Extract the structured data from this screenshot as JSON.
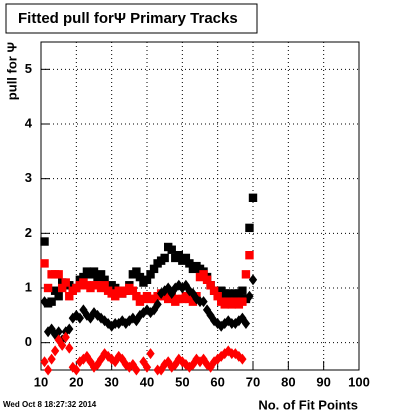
{
  "chart_data": {
    "type": "scatter",
    "title": "Fitted pull forΨ  Primary Tracks",
    "y_label": "pull for Ψ",
    "x_label": "No. of Fit Points",
    "timestamp": "Wed Oct  8 18:27:32 2014",
    "xlim": [
      10,
      100
    ],
    "ylim": [
      -0.5,
      5.5
    ],
    "xticks": [
      10,
      20,
      30,
      40,
      50,
      60,
      70,
      80,
      90,
      100
    ],
    "yticks": [
      0,
      1,
      2,
      3,
      4,
      5
    ],
    "grid": true,
    "x": [
      11,
      12,
      13,
      14,
      15,
      16,
      17,
      18,
      19,
      20,
      21,
      22,
      23,
      24,
      25,
      26,
      27,
      28,
      29,
      30,
      31,
      32,
      33,
      34,
      35,
      36,
      37,
      38,
      39,
      40,
      41,
      42,
      43,
      44,
      45,
      46,
      47,
      48,
      49,
      50,
      51,
      52,
      53,
      54,
      55,
      56,
      57,
      58,
      59,
      60,
      61,
      62,
      63,
      64,
      65,
      66,
      67,
      68,
      69,
      70
    ],
    "series": [
      {
        "color": "#000000",
        "marker": "square",
        "values": [
          1.85,
          0.72,
          0.75,
          0.95,
          0.85,
          1.1,
          1.05,
          1.05,
          0.95,
          1.0,
          1.15,
          1.2,
          1.3,
          1.25,
          1.3,
          1.2,
          1.25,
          1.15,
          1.0,
          1.05,
          1.0,
          0.95,
          0.9,
          0.95,
          1.05,
          1.25,
          1.3,
          1.2,
          1.1,
          1.15,
          1.25,
          1.35,
          1.45,
          1.5,
          1.55,
          1.75,
          1.7,
          1.55,
          1.6,
          1.5,
          1.55,
          1.45,
          1.35,
          1.4,
          1.35,
          1.3,
          1.2,
          1.05,
          0.95,
          0.9,
          0.95,
          0.9,
          0.9,
          0.85,
          0.9,
          0.9,
          0.95,
          0.8,
          2.1,
          2.65
        ]
      },
      {
        "color": "#ff0000",
        "marker": "square",
        "values": [
          1.45,
          1.0,
          1.25,
          1.25,
          1.25,
          1.0,
          1.1,
          0.85,
          0.95,
          1.0,
          1.05,
          1.1,
          1.05,
          1.0,
          1.05,
          1.05,
          1.0,
          1.05,
          0.95,
          0.9,
          0.85,
          0.95,
          0.9,
          0.95,
          1.0,
          0.95,
          0.85,
          0.75,
          0.8,
          0.85,
          0.8,
          0.8,
          0.85,
          0.9,
          0.85,
          0.8,
          0.85,
          0.75,
          0.8,
          0.8,
          0.85,
          0.8,
          0.75,
          0.85,
          1.2,
          1.25,
          1.15,
          1.05,
          0.95,
          0.85,
          0.75,
          0.7,
          0.75,
          0.7,
          0.75,
          0.7,
          0.75,
          1.25,
          1.6,
          null
        ]
      },
      {
        "color": "#000000",
        "marker": "diamond",
        "values": [
          0.75,
          0.2,
          0.25,
          0.15,
          0.2,
          0.05,
          0.2,
          0.25,
          0.45,
          0.5,
          0.45,
          0.6,
          0.5,
          0.45,
          0.55,
          0.5,
          0.45,
          0.4,
          0.35,
          0.3,
          0.35,
          0.35,
          0.4,
          0.35,
          0.4,
          0.45,
          0.4,
          0.5,
          0.55,
          0.6,
          0.55,
          0.6,
          0.7,
          0.9,
          0.95,
          1.0,
          0.9,
          1.0,
          1.05,
          1.0,
          1.05,
          0.95,
          0.9,
          0.8,
          0.75,
          0.75,
          0.6,
          0.5,
          0.4,
          0.35,
          0.3,
          0.35,
          0.4,
          0.35,
          0.35,
          0.4,
          0.45,
          0.35,
          0.85,
          1.15
        ]
      },
      {
        "color": "#ff0000",
        "marker": "diamond",
        "values": [
          -0.35,
          -0.5,
          -0.3,
          -0.15,
          0.05,
          -0.05,
          0.1,
          -0.1,
          -0.45,
          -0.5,
          -0.35,
          -0.3,
          -0.25,
          -0.35,
          -0.45,
          -0.4,
          -0.3,
          -0.2,
          -0.25,
          -0.3,
          -0.35,
          -0.25,
          -0.3,
          -0.4,
          -0.45,
          -0.4,
          -0.5,
          null,
          -0.35,
          -0.45,
          -0.2,
          null,
          -0.5,
          -0.5,
          -0.4,
          -0.35,
          -0.45,
          -0.4,
          -0.3,
          -0.35,
          -0.4,
          -0.45,
          -0.4,
          -0.3,
          -0.35,
          -0.3,
          -0.4,
          -0.45,
          -0.35,
          -0.3,
          -0.25,
          -0.2,
          -0.15,
          -0.2,
          -0.2,
          -0.25,
          -0.3,
          null,
          null,
          null
        ]
      }
    ]
  }
}
